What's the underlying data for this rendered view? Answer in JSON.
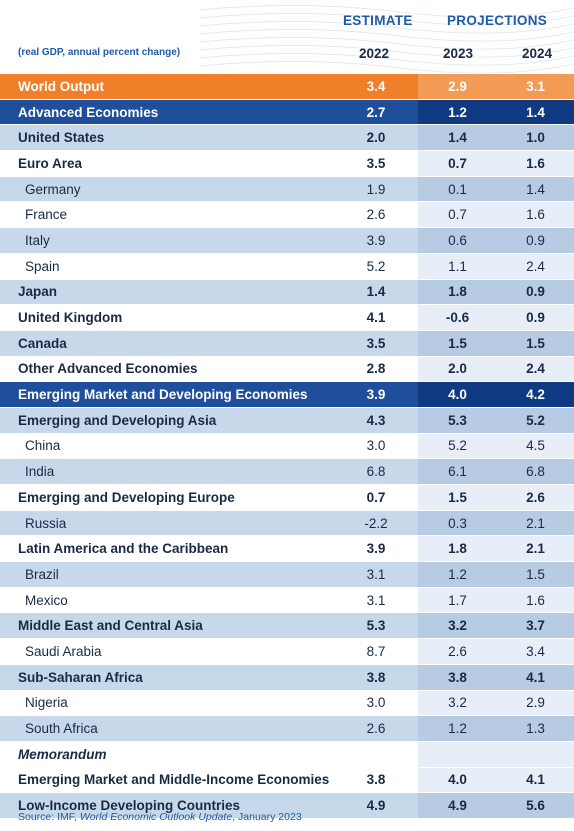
{
  "header": {
    "estimate_label": "ESTIMATE",
    "projections_label": "PROJECTIONS",
    "unit_note": "(real GDP, annual percent change)",
    "years": [
      "2022",
      "2023",
      "2024"
    ]
  },
  "rows": [
    {
      "label": "World Output",
      "v": [
        "3.4",
        "2.9",
        "3.1"
      ]
    },
    {
      "label": "Advanced Economies",
      "v": [
        "2.7",
        "1.2",
        "1.4"
      ]
    },
    {
      "label": "United States",
      "v": [
        "2.0",
        "1.4",
        "1.0"
      ]
    },
    {
      "label": "Euro Area",
      "v": [
        "3.5",
        "0.7",
        "1.6"
      ]
    },
    {
      "label": "Germany",
      "v": [
        "1.9",
        "0.1",
        "1.4"
      ]
    },
    {
      "label": "France",
      "v": [
        "2.6",
        "0.7",
        "1.6"
      ]
    },
    {
      "label": "Italy",
      "v": [
        "3.9",
        "0.6",
        "0.9"
      ]
    },
    {
      "label": "Spain",
      "v": [
        "5.2",
        "1.1",
        "2.4"
      ]
    },
    {
      "label": "Japan",
      "v": [
        "1.4",
        "1.8",
        "0.9"
      ]
    },
    {
      "label": "United Kingdom",
      "v": [
        "4.1",
        "-0.6",
        "0.9"
      ]
    },
    {
      "label": "Canada",
      "v": [
        "3.5",
        "1.5",
        "1.5"
      ]
    },
    {
      "label": "Other Advanced Economies",
      "v": [
        "2.8",
        "2.0",
        "2.4"
      ]
    },
    {
      "label": "Emerging Market and Developing Economies",
      "v": [
        "3.9",
        "4.0",
        "4.2"
      ]
    },
    {
      "label": "Emerging and Developing Asia",
      "v": [
        "4.3",
        "5.3",
        "5.2"
      ]
    },
    {
      "label": "China",
      "v": [
        "3.0",
        "5.2",
        "4.5"
      ]
    },
    {
      "label": "India",
      "v": [
        "6.8",
        "6.1",
        "6.8"
      ]
    },
    {
      "label": "Emerging and Developing Europe",
      "v": [
        "0.7",
        "1.5",
        "2.6"
      ]
    },
    {
      "label": "Russia",
      "v": [
        "-2.2",
        "0.3",
        "2.1"
      ]
    },
    {
      "label": "Latin America and the Caribbean",
      "v": [
        "3.9",
        "1.8",
        "2.1"
      ]
    },
    {
      "label": "Brazil",
      "v": [
        "3.1",
        "1.2",
        "1.5"
      ]
    },
    {
      "label": "Mexico",
      "v": [
        "3.1",
        "1.7",
        "1.6"
      ]
    },
    {
      "label": "Middle East and Central Asia",
      "v": [
        "5.3",
        "3.2",
        "3.7"
      ]
    },
    {
      "label": "Saudi Arabia",
      "v": [
        "8.7",
        "2.6",
        "3.4"
      ]
    },
    {
      "label": "Sub-Saharan Africa",
      "v": [
        "3.8",
        "3.8",
        "4.1"
      ]
    },
    {
      "label": "Nigeria",
      "v": [
        "3.0",
        "3.2",
        "2.9"
      ]
    },
    {
      "label": "South Africa",
      "v": [
        "2.6",
        "1.2",
        "1.3"
      ]
    },
    {
      "label": "Memorandum",
      "v": [
        "",
        "",
        ""
      ]
    },
    {
      "label": "Emerging Market and Middle-Income Economies",
      "v": [
        "3.8",
        "4.0",
        "4.1"
      ]
    },
    {
      "label": "Low-Income Developing Countries",
      "v": [
        "4.9",
        "4.9",
        "5.6"
      ]
    }
  ],
  "source": {
    "prefix": "Source: IMF, ",
    "title": "World Economic Outlook Update",
    "suffix": ", January 2023"
  },
  "colors": {
    "orange": "#f07f2a",
    "navy": "#1f4e9c",
    "light_blue": "#c6d8ea",
    "text_blue": "#1f5aa6"
  }
}
